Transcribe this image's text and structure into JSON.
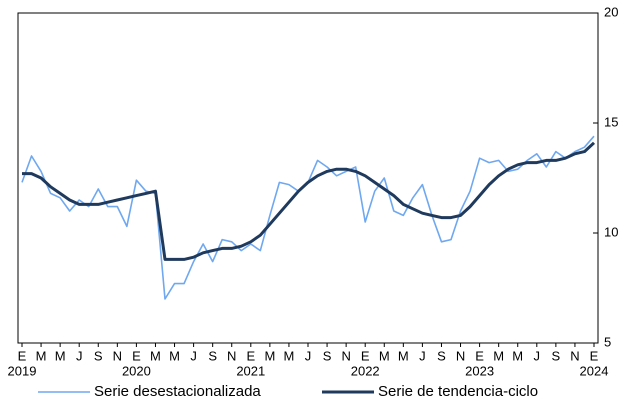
{
  "chart_data": {
    "type": "line",
    "categories": [
      "E",
      null,
      "M",
      null,
      "M",
      null,
      "J",
      null,
      "S",
      null,
      "N",
      null,
      "E",
      null,
      "M",
      null,
      "M",
      null,
      "J",
      null,
      "S",
      null,
      "N",
      null,
      "E",
      null,
      "M",
      null,
      "M",
      null,
      "J",
      null,
      "S",
      null,
      "N",
      null,
      "E",
      null,
      "M",
      null,
      "M",
      null,
      "J",
      null,
      "S",
      null,
      "N",
      null,
      "E",
      null,
      "M",
      null,
      "M",
      null,
      "J",
      null,
      "S",
      null,
      "N",
      null,
      "E"
    ],
    "year_labels": [
      "2019",
      "2020",
      "2021",
      "2022",
      "2023",
      "2024"
    ],
    "series": [
      {
        "name": "Serie desestacionalizada",
        "color": "#6fa8f0",
        "values": [
          12.3,
          13.5,
          12.8,
          11.8,
          11.6,
          11.0,
          11.5,
          11.2,
          12.0,
          11.2,
          11.2,
          10.3,
          12.4,
          11.9,
          11.8,
          7.0,
          7.7,
          7.7,
          8.7,
          9.5,
          8.7,
          9.7,
          9.6,
          9.2,
          9.5,
          9.2,
          10.8,
          12.3,
          12.2,
          11.9,
          12.3,
          13.3,
          13.0,
          12.6,
          12.8,
          13.0,
          10.5,
          11.9,
          12.5,
          11.0,
          10.8,
          11.6,
          12.2,
          10.8,
          9.6,
          9.7,
          11.0,
          11.9,
          13.4,
          13.2,
          13.3,
          12.8,
          12.9,
          13.3,
          13.6,
          13.0,
          13.7,
          13.4,
          13.7,
          13.9,
          14.4
        ]
      },
      {
        "name": "Serie de tendencia-ciclo",
        "color": "#1f3a5c",
        "values": [
          12.7,
          12.7,
          12.5,
          12.1,
          11.8,
          11.5,
          11.3,
          11.3,
          11.3,
          11.4,
          11.5,
          11.6,
          11.7,
          11.8,
          11.9,
          8.8,
          8.8,
          8.8,
          8.9,
          9.1,
          9.2,
          9.3,
          9.3,
          9.4,
          9.6,
          9.9,
          10.4,
          10.9,
          11.4,
          11.9,
          12.3,
          12.6,
          12.8,
          12.9,
          12.9,
          12.8,
          12.6,
          12.3,
          12.0,
          11.7,
          11.3,
          11.1,
          10.9,
          10.8,
          10.7,
          10.7,
          10.8,
          11.2,
          11.7,
          12.2,
          12.6,
          12.9,
          13.1,
          13.2,
          13.2,
          13.3,
          13.3,
          13.4,
          13.6,
          13.7,
          14.1
        ]
      }
    ],
    "ylim": [
      5,
      20
    ],
    "yticks": [
      5,
      10,
      15,
      20
    ],
    "axis_side": "right",
    "grid": false
  }
}
